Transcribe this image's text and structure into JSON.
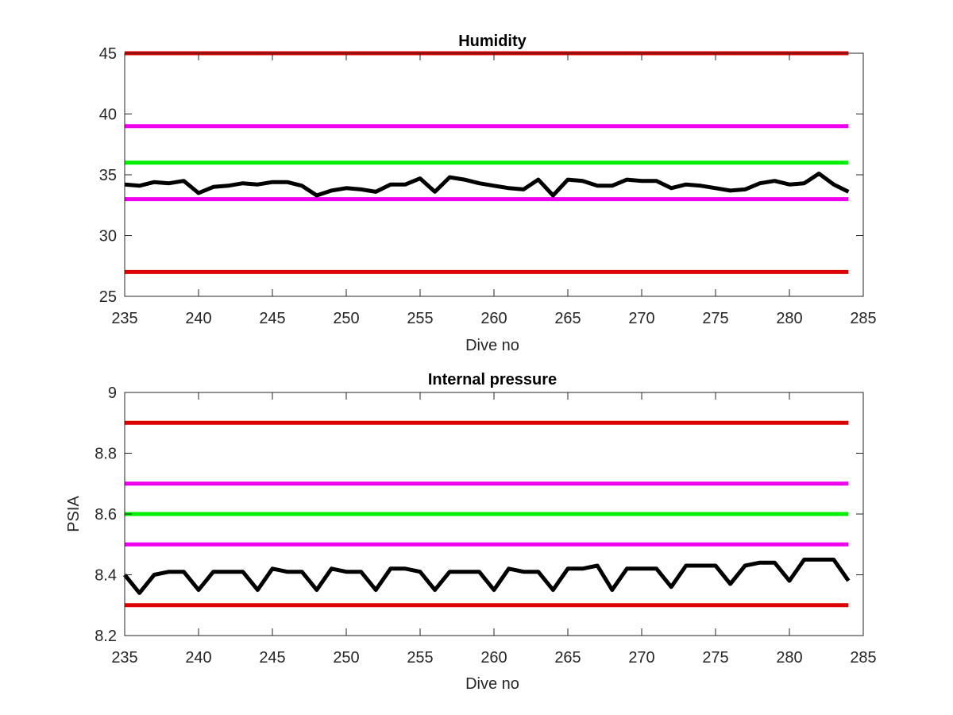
{
  "chart_data": [
    {
      "type": "line",
      "title": "Humidity",
      "xlabel": "Dive no",
      "ylabel": "",
      "xlim": [
        235,
        285
      ],
      "ylim": [
        25,
        45
      ],
      "xticks": [
        235,
        240,
        245,
        250,
        255,
        260,
        265,
        270,
        275,
        280,
        285
      ],
      "yticks": [
        25,
        30,
        35,
        40,
        45
      ],
      "grid": false,
      "thresholds": [
        {
          "value": 45,
          "color": "#dd0000"
        },
        {
          "value": 39,
          "color": "#ee00ee"
        },
        {
          "value": 36,
          "color": "#00ee00"
        },
        {
          "value": 33,
          "color": "#ee00ee"
        },
        {
          "value": 27,
          "color": "#dd0000"
        }
      ],
      "series": [
        {
          "color": "#000000",
          "x": [
            235,
            236,
            237,
            238,
            239,
            240,
            241,
            242,
            243,
            244,
            245,
            246,
            247,
            248,
            249,
            250,
            251,
            252,
            253,
            254,
            255,
            256,
            257,
            258,
            259,
            260,
            261,
            262,
            263,
            264,
            265,
            266,
            267,
            268,
            269,
            270,
            271,
            272,
            273,
            274,
            275,
            276,
            277,
            278,
            279,
            280,
            281,
            282,
            283,
            284
          ],
          "y": [
            34.2,
            34.1,
            34.4,
            34.3,
            34.5,
            33.5,
            34.0,
            34.1,
            34.3,
            34.2,
            34.4,
            34.4,
            34.1,
            33.3,
            33.7,
            33.9,
            33.8,
            33.6,
            34.2,
            34.2,
            34.7,
            33.6,
            34.8,
            34.6,
            34.3,
            34.1,
            33.9,
            33.8,
            34.6,
            33.3,
            34.6,
            34.5,
            34.1,
            34.1,
            34.6,
            34.5,
            34.5,
            33.9,
            34.2,
            34.1,
            33.9,
            33.7,
            33.8,
            34.3,
            34.5,
            34.2,
            34.3,
            35.1,
            34.2,
            33.6
          ]
        }
      ]
    },
    {
      "type": "line",
      "title": "Internal pressure",
      "xlabel": "Dive no",
      "ylabel": "PSIA",
      "xlim": [
        235,
        285
      ],
      "ylim": [
        8.2,
        9.0
      ],
      "xticks": [
        235,
        240,
        245,
        250,
        255,
        260,
        265,
        270,
        275,
        280,
        285
      ],
      "yticks": [
        8.2,
        8.4,
        8.6,
        8.8,
        9
      ],
      "grid": false,
      "thresholds": [
        {
          "value": 8.9,
          "color": "#dd0000"
        },
        {
          "value": 8.7,
          "color": "#ee00ee"
        },
        {
          "value": 8.6,
          "color": "#00ee00"
        },
        {
          "value": 8.5,
          "color": "#ee00ee"
        },
        {
          "value": 8.3,
          "color": "#dd0000"
        }
      ],
      "series": [
        {
          "color": "#000000",
          "x": [
            235,
            236,
            237,
            238,
            239,
            240,
            241,
            242,
            243,
            244,
            245,
            246,
            247,
            248,
            249,
            250,
            251,
            252,
            253,
            254,
            255,
            256,
            257,
            258,
            259,
            260,
            261,
            262,
            263,
            264,
            265,
            266,
            267,
            268,
            269,
            270,
            271,
            272,
            273,
            274,
            275,
            276,
            277,
            278,
            279,
            280,
            281,
            282,
            283,
            284
          ],
          "y": [
            8.4,
            8.34,
            8.4,
            8.41,
            8.41,
            8.35,
            8.41,
            8.41,
            8.41,
            8.35,
            8.42,
            8.41,
            8.41,
            8.35,
            8.42,
            8.41,
            8.41,
            8.35,
            8.42,
            8.42,
            8.41,
            8.35,
            8.41,
            8.41,
            8.41,
            8.35,
            8.42,
            8.41,
            8.41,
            8.35,
            8.42,
            8.42,
            8.43,
            8.35,
            8.42,
            8.42,
            8.42,
            8.36,
            8.43,
            8.43,
            8.43,
            8.37,
            8.43,
            8.44,
            8.44,
            8.38,
            8.45,
            8.45,
            8.45,
            8.38
          ]
        }
      ]
    }
  ]
}
